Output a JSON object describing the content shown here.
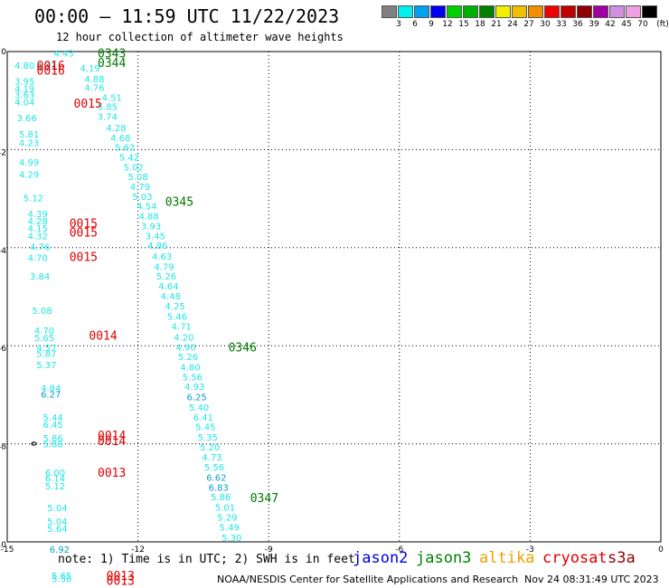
{
  "header": {
    "title": "00:00 – 11:59 UTC 11/22/2023",
    "subtitle": "12 hour collection of altimeter wave heights"
  },
  "legend": {
    "colors": [
      "#808080",
      "#00f0f0",
      "#00a0f0",
      "#0000f0",
      "#00d000",
      "#00b000",
      "#008000",
      "#f0f000",
      "#f0c000",
      "#f09000",
      "#f00000",
      "#c00000",
      "#900000",
      "#a000a0",
      "#d090e0",
      "#f0a0e0",
      "#000000"
    ],
    "labels": [
      "3",
      "6",
      "9",
      "12",
      "15",
      "18",
      "21",
      "24",
      "27",
      "30",
      "33",
      "36",
      "39",
      "42",
      "45",
      "70",
      "(ft)"
    ]
  },
  "axes": {
    "x_ticks": [
      "-15",
      "-12",
      "-9",
      "-6",
      "-3",
      "0"
    ],
    "y_ticks": [
      "0",
      "-2",
      "-4",
      "-6",
      "-8",
      "-10"
    ]
  },
  "wave_heights": {
    "colors": {
      "cyan": "#1ee6e6",
      "teal": "#0aa0c8",
      "red": "#e00000",
      "green": "#007800"
    },
    "points": [
      {
        "lon": -13.7,
        "lat": -0.03,
        "v": "4.43",
        "c": "cyan"
      },
      {
        "lon": -14.6,
        "lat": -0.28,
        "v": "4.80",
        "c": "cyan"
      },
      {
        "lon": -13.1,
        "lat": -0.33,
        "v": "4.19",
        "c": "cyan"
      },
      {
        "lon": -13.0,
        "lat": -0.55,
        "v": "4.88",
        "c": "cyan"
      },
      {
        "lon": -13.0,
        "lat": -0.73,
        "v": "4.76",
        "c": "cyan"
      },
      {
        "lon": -12.6,
        "lat": -0.93,
        "v": "4.51",
        "c": "cyan"
      },
      {
        "lon": -12.7,
        "lat": -1.12,
        "v": "5.85",
        "c": "cyan"
      },
      {
        "lon": -12.7,
        "lat": -1.32,
        "v": "3.74",
        "c": "cyan"
      },
      {
        "lon": -12.5,
        "lat": -1.55,
        "v": "4.28",
        "c": "cyan"
      },
      {
        "lon": -12.4,
        "lat": -1.75,
        "v": "4.68",
        "c": "cyan"
      },
      {
        "lon": -12.3,
        "lat": -1.95,
        "v": "5.62",
        "c": "cyan"
      },
      {
        "lon": -12.2,
        "lat": -2.15,
        "v": "5.42",
        "c": "cyan"
      },
      {
        "lon": -12.1,
        "lat": -2.35,
        "v": "5.02",
        "c": "cyan"
      },
      {
        "lon": -12.0,
        "lat": -2.55,
        "v": "5.08",
        "c": "cyan"
      },
      {
        "lon": -11.95,
        "lat": -2.75,
        "v": "4.79",
        "c": "cyan"
      },
      {
        "lon": -11.9,
        "lat": -2.95,
        "v": "5.03",
        "c": "cyan"
      },
      {
        "lon": -11.8,
        "lat": -3.15,
        "v": "4.54",
        "c": "cyan"
      },
      {
        "lon": -11.75,
        "lat": -3.35,
        "v": "4.88",
        "c": "cyan"
      },
      {
        "lon": -11.7,
        "lat": -3.55,
        "v": "3.93",
        "c": "cyan"
      },
      {
        "lon": -11.6,
        "lat": -3.75,
        "v": "3.45",
        "c": "cyan"
      },
      {
        "lon": -11.55,
        "lat": -3.95,
        "v": "4.86",
        "c": "cyan"
      },
      {
        "lon": -11.45,
        "lat": -4.17,
        "v": "4.63",
        "c": "cyan"
      },
      {
        "lon": -11.4,
        "lat": -4.38,
        "v": "4.79",
        "c": "cyan"
      },
      {
        "lon": -11.35,
        "lat": -4.58,
        "v": "5.26",
        "c": "cyan"
      },
      {
        "lon": -11.3,
        "lat": -4.78,
        "v": "4.64",
        "c": "cyan"
      },
      {
        "lon": -11.25,
        "lat": -4.98,
        "v": "4.48",
        "c": "cyan"
      },
      {
        "lon": -11.15,
        "lat": -5.18,
        "v": "4.25",
        "c": "cyan"
      },
      {
        "lon": -11.1,
        "lat": -5.4,
        "v": "5.46",
        "c": "cyan"
      },
      {
        "lon": -11.0,
        "lat": -5.6,
        "v": "4.71",
        "c": "cyan"
      },
      {
        "lon": -10.95,
        "lat": -5.82,
        "v": "4.20",
        "c": "cyan"
      },
      {
        "lon": -10.9,
        "lat": -6.02,
        "v": "4.90",
        "c": "cyan"
      },
      {
        "lon": -10.85,
        "lat": -6.22,
        "v": "5.26",
        "c": "cyan"
      },
      {
        "lon": -10.8,
        "lat": -6.43,
        "v": "4.80",
        "c": "cyan"
      },
      {
        "lon": -10.75,
        "lat": -6.63,
        "v": "5.56",
        "c": "cyan"
      },
      {
        "lon": -10.7,
        "lat": -6.83,
        "v": "4.93",
        "c": "cyan"
      },
      {
        "lon": -10.65,
        "lat": -7.04,
        "v": "6.25",
        "c": "teal"
      },
      {
        "lon": -10.6,
        "lat": -7.25,
        "v": "5.40",
        "c": "cyan"
      },
      {
        "lon": -10.5,
        "lat": -7.45,
        "v": "6.41",
        "c": "cyan"
      },
      {
        "lon": -10.45,
        "lat": -7.65,
        "v": "5.45",
        "c": "cyan"
      },
      {
        "lon": -10.4,
        "lat": -7.86,
        "v": "5.35",
        "c": "cyan"
      },
      {
        "lon": -10.35,
        "lat": -8.06,
        "v": "5.20",
        "c": "cyan"
      },
      {
        "lon": -10.3,
        "lat": -8.27,
        "v": "4.73",
        "c": "cyan"
      },
      {
        "lon": -10.25,
        "lat": -8.47,
        "v": "5.56",
        "c": "cyan"
      },
      {
        "lon": -10.2,
        "lat": -8.68,
        "v": "6.62",
        "c": "teal"
      },
      {
        "lon": -10.15,
        "lat": -8.88,
        "v": "6.83",
        "c": "teal"
      },
      {
        "lon": -10.1,
        "lat": -9.08,
        "v": "5.86",
        "c": "cyan"
      },
      {
        "lon": -10.0,
        "lat": -9.29,
        "v": "5.01",
        "c": "cyan"
      },
      {
        "lon": -9.95,
        "lat": -9.49,
        "v": "5.29",
        "c": "cyan"
      },
      {
        "lon": -9.9,
        "lat": -9.7,
        "v": "5.49",
        "c": "cyan"
      },
      {
        "lon": -9.85,
        "lat": -9.91,
        "v": "5.30",
        "c": "cyan"
      },
      {
        "lon": -14.1,
        "lat": -0.28,
        "v": "4.71",
        "c": "cyan"
      },
      {
        "lon": -14.6,
        "lat": -0.6,
        "v": "3.95",
        "c": "cyan"
      },
      {
        "lon": -14.6,
        "lat": -0.75,
        "v": "4.19",
        "c": "cyan"
      },
      {
        "lon": -14.6,
        "lat": -0.88,
        "v": "3.63",
        "c": "cyan"
      },
      {
        "lon": -14.6,
        "lat": -1.02,
        "v": "4.04",
        "c": "cyan"
      },
      {
        "lon": -14.55,
        "lat": -1.35,
        "v": "3.66",
        "c": "cyan"
      },
      {
        "lon": -14.5,
        "lat": -1.68,
        "v": "5.81",
        "c": "cyan"
      },
      {
        "lon": -14.5,
        "lat": -1.85,
        "v": "4.23",
        "c": "cyan"
      },
      {
        "lon": -14.5,
        "lat": -2.25,
        "v": "4.99",
        "c": "cyan"
      },
      {
        "lon": -14.5,
        "lat": -2.5,
        "v": "4.29",
        "c": "cyan"
      },
      {
        "lon": -14.4,
        "lat": -2.98,
        "v": "5.12",
        "c": "cyan"
      },
      {
        "lon": -14.3,
        "lat": -3.3,
        "v": "4.39",
        "c": "cyan"
      },
      {
        "lon": -14.3,
        "lat": -3.45,
        "v": "4.28",
        "c": "cyan"
      },
      {
        "lon": -14.3,
        "lat": -3.6,
        "v": "4.15",
        "c": "cyan"
      },
      {
        "lon": -14.3,
        "lat": -3.75,
        "v": "4.32",
        "c": "cyan"
      },
      {
        "lon": -14.25,
        "lat": -3.98,
        "v": "4.76",
        "c": "cyan"
      },
      {
        "lon": -14.3,
        "lat": -4.2,
        "v": "4.70",
        "c": "cyan"
      },
      {
        "lon": -14.25,
        "lat": -4.58,
        "v": "3.84",
        "c": "cyan"
      },
      {
        "lon": -14.2,
        "lat": -5.28,
        "v": "5.08",
        "c": "cyan"
      },
      {
        "lon": -14.15,
        "lat": -5.68,
        "v": "4.70",
        "c": "cyan"
      },
      {
        "lon": -14.15,
        "lat": -5.83,
        "v": "5.65",
        "c": "cyan"
      },
      {
        "lon": -14.1,
        "lat": -6.03,
        "v": "4.57",
        "c": "cyan"
      },
      {
        "lon": -14.1,
        "lat": -6.15,
        "v": "5.87",
        "c": "cyan"
      },
      {
        "lon": -14.1,
        "lat": -6.38,
        "v": "5.37",
        "c": "cyan"
      },
      {
        "lon": -14.0,
        "lat": -6.85,
        "v": "4.84",
        "c": "cyan"
      },
      {
        "lon": -14.0,
        "lat": -6.98,
        "v": "6.27",
        "c": "teal"
      },
      {
        "lon": -13.95,
        "lat": -7.45,
        "v": "5.44",
        "c": "cyan"
      },
      {
        "lon": -13.95,
        "lat": -7.6,
        "v": "6.45",
        "c": "cyan"
      },
      {
        "lon": -13.95,
        "lat": -7.88,
        "v": "5.86",
        "c": "cyan"
      },
      {
        "lon": -13.95,
        "lat": -8.0,
        "v": "5.86",
        "c": "cyan"
      },
      {
        "lon": -13.9,
        "lat": -8.58,
        "v": "6.00",
        "c": "cyan"
      },
      {
        "lon": -13.9,
        "lat": -8.7,
        "v": "6.14",
        "c": "cyan"
      },
      {
        "lon": -13.9,
        "lat": -8.86,
        "v": "5.12",
        "c": "cyan"
      },
      {
        "lon": -13.85,
        "lat": -9.3,
        "v": "5.04",
        "c": "cyan"
      },
      {
        "lon": -13.85,
        "lat": -9.58,
        "v": "5.04",
        "c": "cyan"
      },
      {
        "lon": -13.85,
        "lat": -9.72,
        "v": "5.64",
        "c": "cyan"
      },
      {
        "lon": -13.8,
        "lat": -10.15,
        "v": "6.92",
        "c": "teal"
      },
      {
        "lon": -13.75,
        "lat": -10.68,
        "v": "5.65",
        "c": "cyan"
      },
      {
        "lon": -13.75,
        "lat": -10.75,
        "v": "5.56",
        "c": "cyan"
      }
    ],
    "passes": [
      {
        "lon": -12.6,
        "lat": -0.03,
        "label": "0343",
        "c": "green"
      },
      {
        "lon": -12.6,
        "lat": -0.22,
        "label": "0344",
        "c": "green"
      },
      {
        "lon": -14.0,
        "lat": -0.28,
        "label": "0016",
        "c": "red"
      },
      {
        "lon": -14.0,
        "lat": -0.38,
        "label": "0016",
        "c": "red"
      },
      {
        "lon": -13.15,
        "lat": -1.05,
        "label": "0015",
        "c": "red"
      },
      {
        "lon": -11.05,
        "lat": -3.05,
        "label": "0345",
        "c": "green"
      },
      {
        "lon": -13.25,
        "lat": -3.5,
        "label": "0015",
        "c": "red"
      },
      {
        "lon": -13.25,
        "lat": -3.68,
        "label": "0015",
        "c": "red"
      },
      {
        "lon": -13.25,
        "lat": -4.18,
        "label": "0015",
        "c": "red"
      },
      {
        "lon": -12.8,
        "lat": -5.78,
        "label": "0014",
        "c": "red"
      },
      {
        "lon": -9.6,
        "lat": -6.02,
        "label": "0346",
        "c": "green"
      },
      {
        "lon": -12.6,
        "lat": -7.82,
        "label": "0014",
        "c": "red"
      },
      {
        "lon": -12.6,
        "lat": -7.93,
        "label": "0014",
        "c": "red"
      },
      {
        "lon": -12.6,
        "lat": -8.58,
        "label": "0013",
        "c": "red"
      },
      {
        "lon": -9.1,
        "lat": -9.1,
        "label": "0347",
        "c": "green"
      },
      {
        "lon": -12.4,
        "lat": -10.68,
        "label": "0013",
        "c": "red"
      },
      {
        "lon": -12.4,
        "lat": -10.78,
        "label": "0013",
        "c": "red"
      }
    ]
  },
  "footer": {
    "note": "note: 1) Time is in UTC; 2) SWH is in feet",
    "satellites": [
      {
        "name": "jason2",
        "color": "#0000e0"
      },
      {
        "name": "jason3",
        "color": "#008000"
      },
      {
        "name": "altika",
        "color": "#f0a000"
      },
      {
        "name": "cryosat",
        "color": "#e00000"
      },
      {
        "name": "s3a",
        "color": "#900000"
      }
    ],
    "credit": "NOAA/NESDIS Center for Satellite Applications and Research",
    "timestamp": "Nov 24 08:31:49 UTC 2023"
  }
}
